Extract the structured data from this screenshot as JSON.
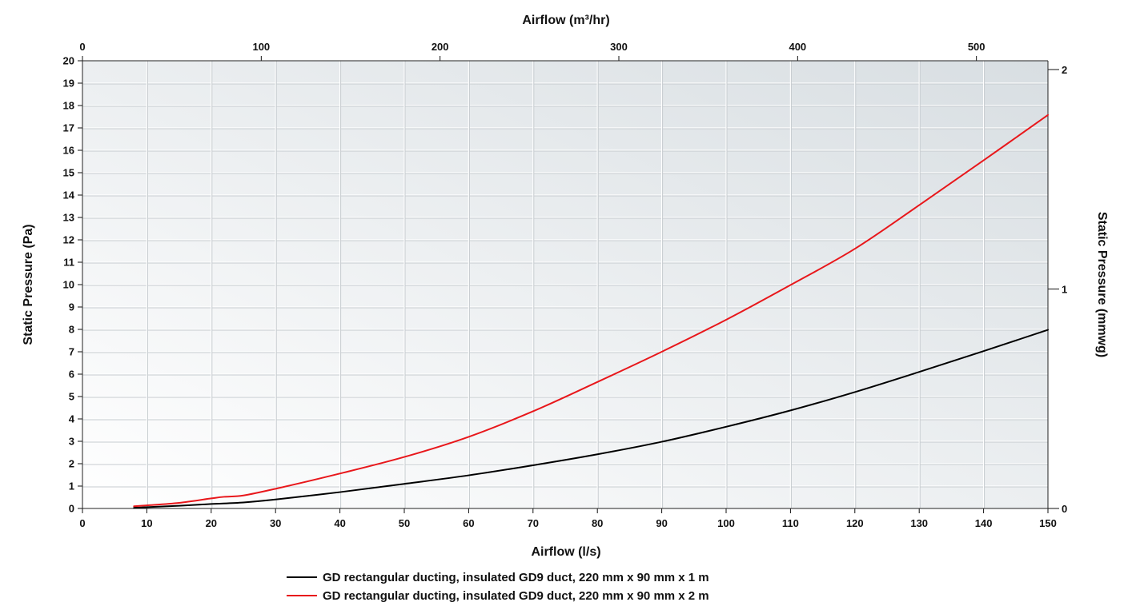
{
  "chart_data": {
    "type": "line",
    "x_axis_bottom": {
      "label": "Airflow (l/s)",
      "range": [
        0,
        150
      ],
      "ticks": [
        "0",
        "10",
        "20",
        "30",
        "40",
        "50",
        "60",
        "70",
        "80",
        "90",
        "100",
        "110",
        "120",
        "130",
        "140",
        "150"
      ]
    },
    "x_axis_top": {
      "label": "Airflow (m³/hr)",
      "range": [
        0,
        540
      ],
      "ticks": [
        "0",
        "100",
        "200",
        "300",
        "400",
        "500"
      ]
    },
    "y_axis_left": {
      "label": "Static Pressure (Pa)",
      "range": [
        0,
        20
      ],
      "ticks": [
        "0",
        "1",
        "2",
        "3",
        "4",
        "5",
        "6",
        "7",
        "8",
        "9",
        "10",
        "11",
        "12",
        "13",
        "14",
        "15",
        "16",
        "17",
        "18",
        "19",
        "20"
      ]
    },
    "y_axis_right": {
      "label": "Static Pressure (mmwg)",
      "range": [
        0,
        2.04
      ],
      "ticks": [
        "0",
        "1",
        "2"
      ]
    },
    "grid": true,
    "legend_position": "bottom",
    "series": [
      {
        "name": "GD rectangular ducting, insulated GD9 duct, 220 mm x 90 mm x 1 m",
        "color": "#000000",
        "x": [
          8,
          10,
          15,
          20,
          25,
          30,
          40,
          50,
          60,
          70,
          80,
          90,
          100,
          110,
          120,
          130,
          140,
          150
        ],
        "y": [
          0.03,
          0.06,
          0.12,
          0.2,
          0.27,
          0.4,
          0.73,
          1.1,
          1.48,
          1.93,
          2.42,
          2.98,
          3.65,
          4.38,
          5.2,
          6.1,
          7.03,
          7.98
        ]
      },
      {
        "name": "GD rectangular ducting, insulated GD9 duct, 220 mm x 90 mm x 2 m",
        "color": "#e8171b",
        "x": [
          8,
          10,
          15,
          20,
          22,
          25,
          30,
          40,
          50,
          60,
          70,
          80,
          90,
          100,
          110,
          120,
          130,
          140,
          150
        ],
        "y": [
          0.1,
          0.14,
          0.25,
          0.45,
          0.52,
          0.58,
          0.88,
          1.56,
          2.3,
          3.2,
          4.34,
          5.65,
          7.0,
          8.43,
          9.98,
          11.6,
          13.55,
          15.55,
          17.58
        ]
      }
    ]
  }
}
